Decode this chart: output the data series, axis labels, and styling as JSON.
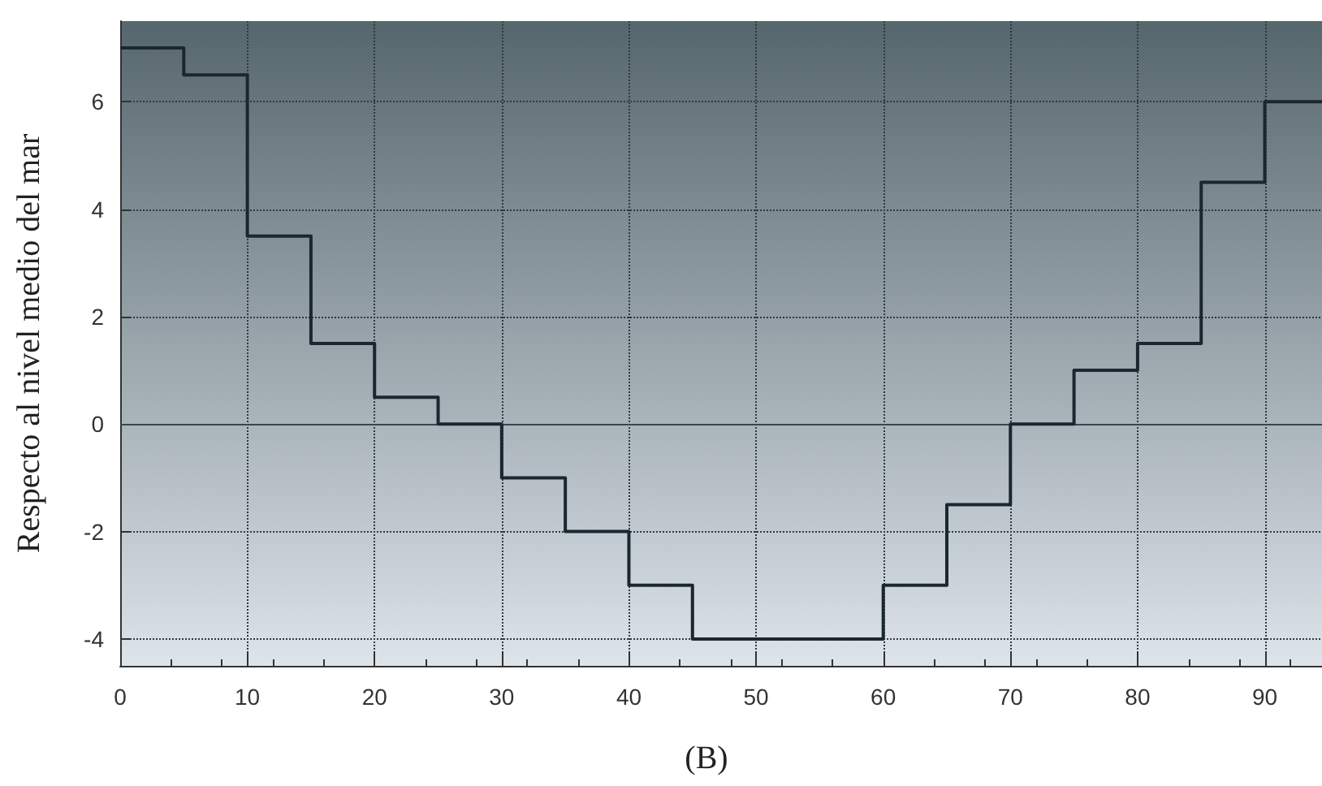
{
  "chart_data": {
    "type": "step",
    "title": "(B)",
    "ylabel": "Respecto al nivel medio del mar",
    "x": [
      0,
      5,
      10,
      15,
      20,
      25,
      30,
      35,
      40,
      45,
      60,
      65,
      70,
      75,
      80,
      85,
      90,
      94.5
    ],
    "series": [
      {
        "color": "#1a2730",
        "values": [
          7,
          6.5,
          3.5,
          1.5,
          0.5,
          0,
          -1,
          -2,
          -3,
          -4,
          -3,
          -1.5,
          0,
          1,
          1.5,
          4.5,
          6,
          6
        ]
      }
    ],
    "xlim": [
      0,
      94.5
    ],
    "xticks": [
      0,
      10,
      20,
      30,
      40,
      50,
      60,
      70,
      80,
      90
    ],
    "ylim": [
      -4.5,
      7.5
    ],
    "yticks": [
      -4,
      -2,
      0,
      2,
      4,
      6
    ],
    "ref_lines": [
      {
        "axis": "y",
        "value": 0,
        "color": "#3a464c",
        "line_style": "solid"
      }
    ],
    "grid": true,
    "line_style": "solid",
    "marker": "none"
  }
}
